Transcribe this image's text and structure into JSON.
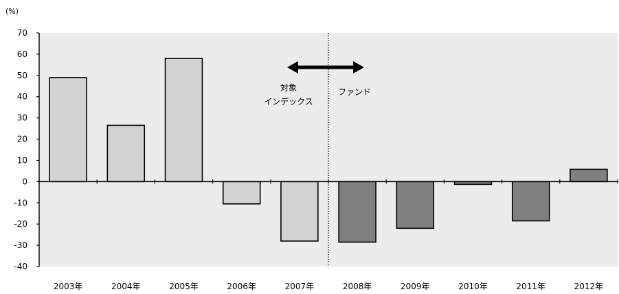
{
  "chart_data": {
    "type": "bar",
    "unit_label": "(%)",
    "categories": [
      "2003年",
      "2004年",
      "2005年",
      "2006年",
      "2007年",
      "2008年",
      "2009年",
      "2010年",
      "2011年",
      "2012年"
    ],
    "values": [
      49,
      26.5,
      58,
      -10.5,
      -28,
      -28.5,
      -22,
      -1.3,
      -18.5,
      5.8
    ],
    "ylim": [
      -40,
      70
    ],
    "yticks": [
      70,
      60,
      50,
      40,
      30,
      20,
      10,
      0,
      -10,
      -20,
      -30,
      -40
    ],
    "series": [
      {
        "name": "対象インデックス",
        "categories": [
          "2003年",
          "2004年",
          "2005年",
          "2006年",
          "2007年"
        ],
        "color": "#d3d3d3"
      },
      {
        "name": "ファンド",
        "categories": [
          "2008年",
          "2009年",
          "2010年",
          "2011年",
          "2012年"
        ],
        "color": "#808080"
      }
    ],
    "plot_background": "#ececec",
    "divider_after_category": "2007年",
    "annotation": {
      "left_label_line1": "対象",
      "left_label_line2": "インデックス",
      "right_label": "ファンド"
    },
    "grid": false,
    "legend": "none"
  }
}
